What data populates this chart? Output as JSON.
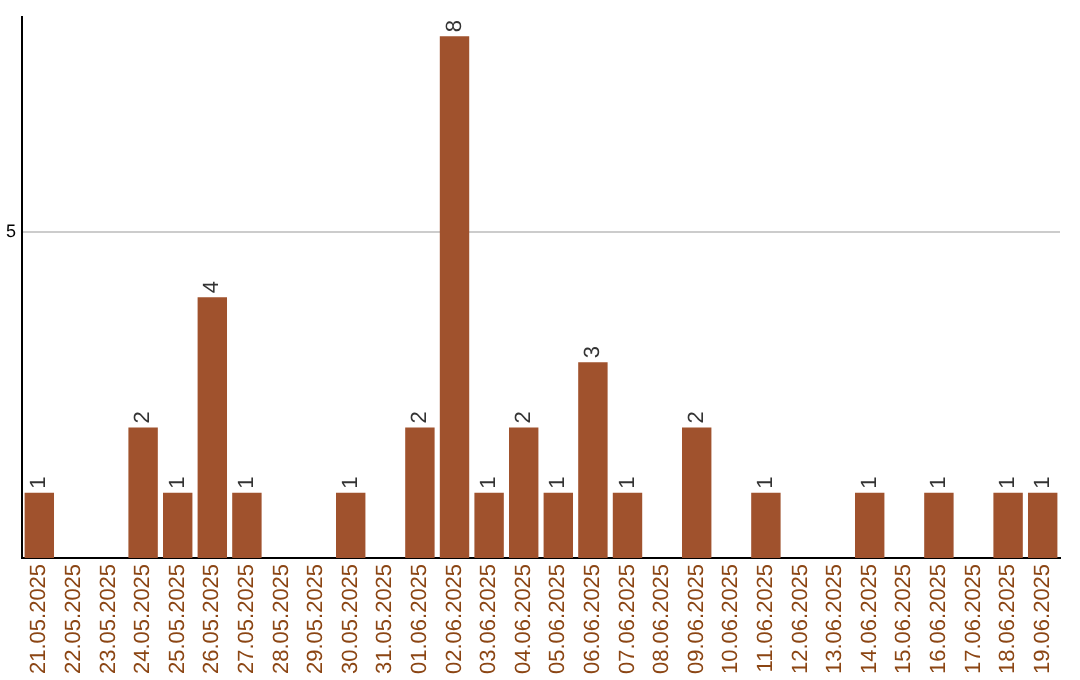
{
  "chart_data": {
    "type": "bar",
    "categories": [
      "21.05.2025",
      "22.05.2025",
      "23.05.2025",
      "24.05.2025",
      "25.05.2025",
      "26.05.2025",
      "27.05.2025",
      "28.05.2025",
      "29.05.2025",
      "30.05.2025",
      "31.05.2025",
      "01.06.2025",
      "02.06.2025",
      "03.06.2025",
      "04.06.2025",
      "05.06.2025",
      "06.06.2025",
      "07.06.2025",
      "08.06.2025",
      "09.06.2025",
      "10.06.2025",
      "11.06.2025",
      "12.06.2025",
      "13.06.2025",
      "14.06.2025",
      "15.06.2025",
      "16.06.2025",
      "17.06.2025",
      "18.06.2025",
      "19.06.2025"
    ],
    "values": [
      1,
      0,
      0,
      2,
      1,
      4,
      1,
      0,
      0,
      1,
      0,
      2,
      8,
      1,
      2,
      1,
      3,
      1,
      0,
      2,
      0,
      1,
      0,
      0,
      1,
      0,
      1,
      0,
      1,
      1
    ],
    "value_labels": [
      "1",
      null,
      null,
      "2",
      "1",
      "4",
      "1",
      null,
      null,
      "1",
      null,
      "2",
      "8",
      "1",
      "2",
      "1",
      "3",
      "1",
      null,
      "2",
      null,
      "1",
      null,
      null,
      "1",
      null,
      "1",
      null,
      "1",
      "1"
    ],
    "color": "#a0522d",
    "ylim": [
      0,
      8.3
    ],
    "yticks": [
      5
    ],
    "grid": "y",
    "legend": false
  }
}
